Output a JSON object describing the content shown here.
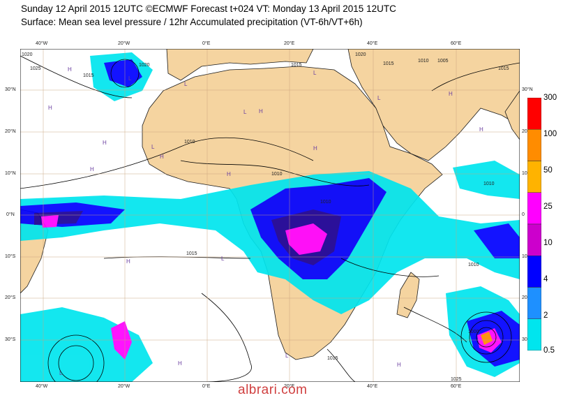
{
  "header": {
    "line1": "Sunday 12 April 2015 12UTC ©ECMWF Forecast t+024 VT: Monday 13 April 2015 12UTC",
    "line2": "Surface: Mean sea level pressure / 12hr Accumulated precipitation (VT-6h/VT+6h)"
  },
  "map": {
    "top_lon_labels": [
      "40°W",
      "20°W",
      "0°E",
      "20°E",
      "40°E",
      "60°E"
    ],
    "bottom_lon_labels": [
      "40°W",
      "20°W",
      "0°E",
      "20°E",
      "40°E",
      "60°E"
    ],
    "left_lat_labels": [
      "30°N",
      "20°N",
      "10°N",
      "0°N",
      "10°S",
      "20°S",
      "30°S"
    ],
    "right_lat_labels": [
      "30°N",
      "20",
      "10",
      "0",
      "10",
      "20",
      "30"
    ],
    "isobar_labels": [
      "1020",
      "1025",
      "1020",
      "1015",
      "1010",
      "1015",
      "1010",
      "1010",
      "1010",
      "1015",
      "1015",
      "1010",
      "1005",
      "1015",
      "1020",
      "1015",
      "1010",
      "1025",
      "1000"
    ],
    "pressure_markers": [
      "H",
      "H",
      "L",
      "L",
      "H",
      "H",
      "L",
      "H",
      "H",
      "L",
      "L",
      "H",
      "H",
      "L",
      "L",
      "H",
      "L",
      "H",
      "H",
      "L",
      "H",
      "H"
    ],
    "colors": {
      "land": "#f5d4a0",
      "ocean": "#ffffff",
      "precip_light": "#00e5ee",
      "precip_blue": "#0000ff",
      "precip_navy": "#1a0099",
      "precip_magenta": "#ff00ff",
      "precip_orange": "#ff8c00",
      "precip_red": "#ff0000",
      "grid": "#c8a27a",
      "isobar": "#000000"
    }
  },
  "legend": {
    "title": "12hr Accumulated precipitation",
    "levels": [
      "300",
      "100",
      "50",
      "25",
      "10",
      "4",
      "2",
      "0.5"
    ],
    "colors": [
      "#ff0000",
      "#ff8c00",
      "#ffb300",
      "#ff00ff",
      "#cc00cc",
      "#0000ff",
      "#1e90ff",
      "#00e5ee"
    ]
  },
  "watermark": "albrari.com"
}
